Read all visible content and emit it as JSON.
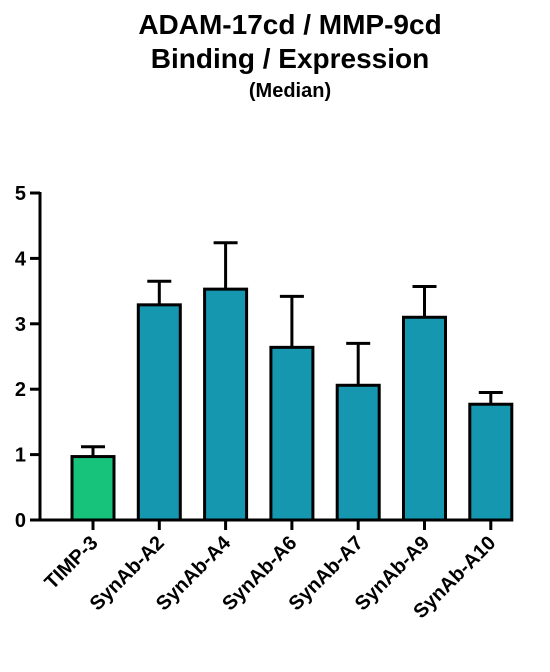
{
  "chart_data": {
    "type": "bar",
    "title_line1": "ADAM-17cd / MMP-9cd",
    "title_line2": "Binding / Expression",
    "subtitle": "(Median)",
    "xlabel": "",
    "ylabel": "",
    "ylim": [
      0,
      5
    ],
    "yticks": [
      0,
      1,
      2,
      3,
      4,
      5
    ],
    "grid": false,
    "categories": [
      "TIMP-3",
      "SynAb-A2",
      "SynAb-A4",
      "SynAb-A6",
      "SynAb-A7",
      "SynAb-A9",
      "SynAb-A10"
    ],
    "values": [
      0.97,
      3.29,
      3.53,
      2.64,
      2.06,
      3.1,
      1.77
    ],
    "errors": [
      0.15,
      0.36,
      0.71,
      0.78,
      0.64,
      0.47,
      0.18
    ],
    "colors": [
      "#17c27a",
      "#1697b0",
      "#1697b0",
      "#1697b0",
      "#1697b0",
      "#1697b0",
      "#1697b0"
    ]
  }
}
